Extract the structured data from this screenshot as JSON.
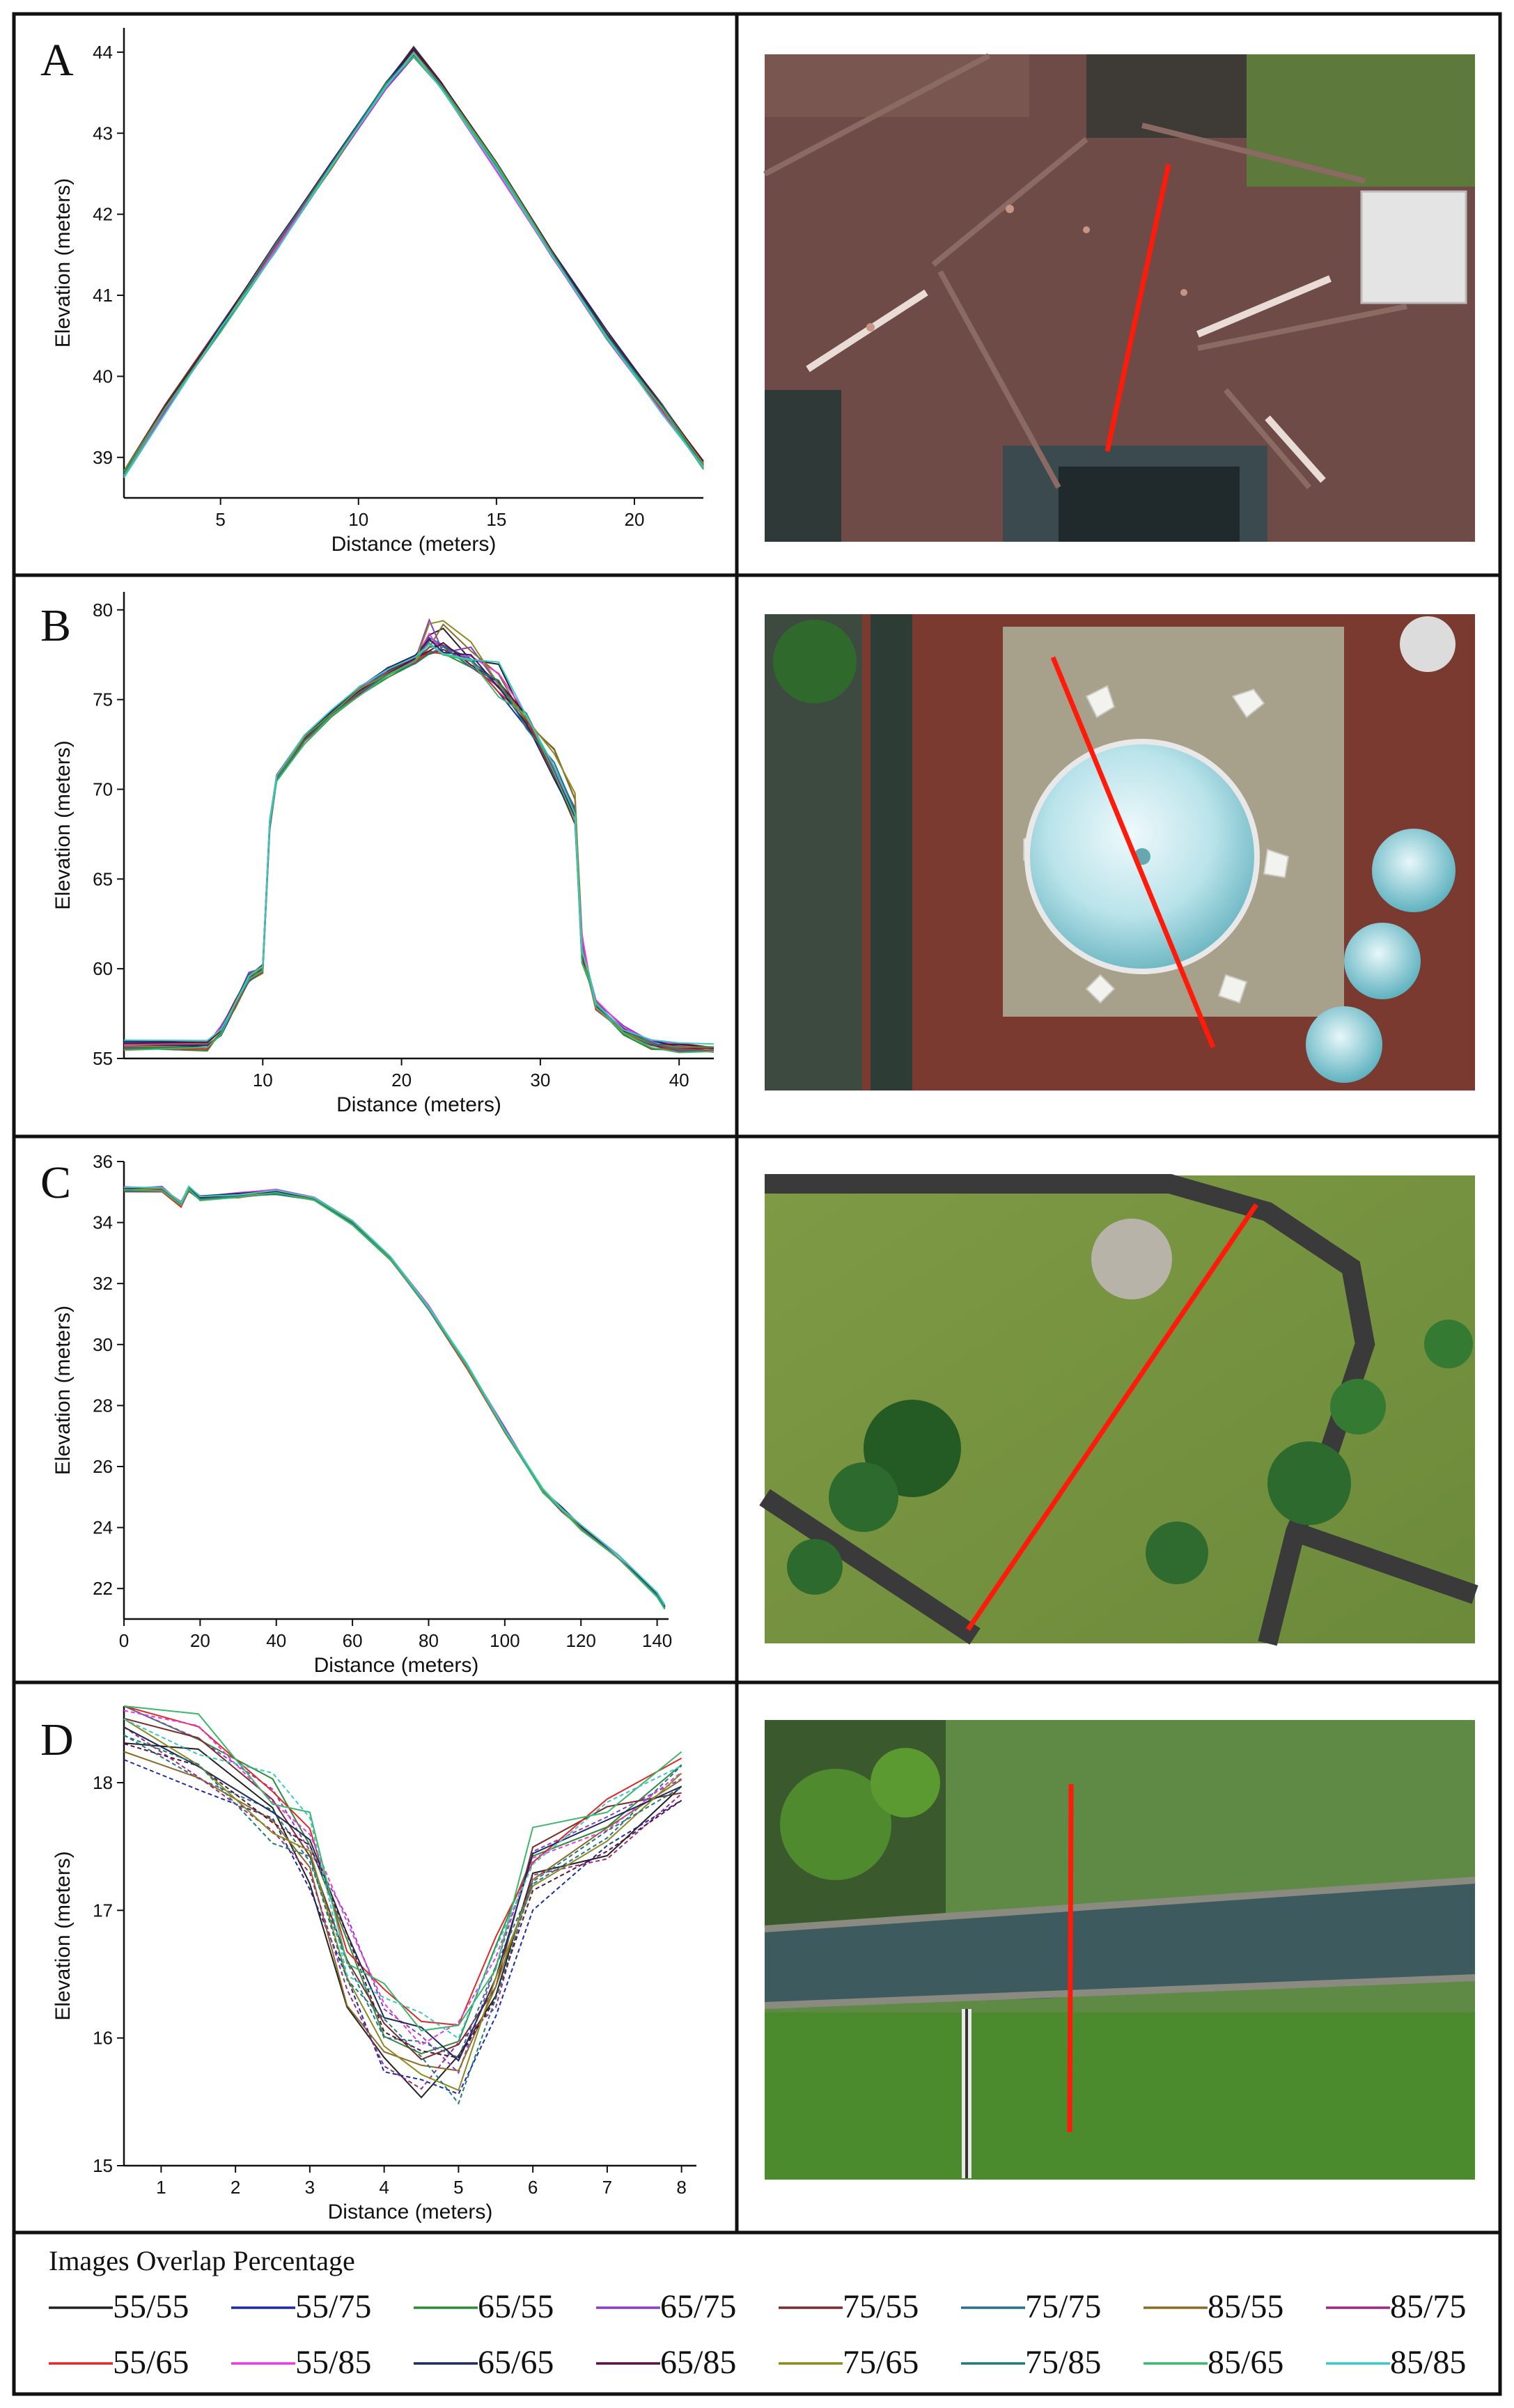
{
  "legend": {
    "title": "Images Overlap Percentage",
    "items": [
      {
        "label": "55/55",
        "color": "#222222"
      },
      {
        "label": "55/75",
        "color": "#1a2aa8"
      },
      {
        "label": "65/55",
        "color": "#2e8b3a"
      },
      {
        "label": "65/75",
        "color": "#8a3ec8"
      },
      {
        "label": "75/55",
        "color": "#7a2c2c"
      },
      {
        "label": "75/75",
        "color": "#2a6f8f"
      },
      {
        "label": "85/55",
        "color": "#8a6a2a"
      },
      {
        "label": "85/75",
        "color": "#a0287a"
      },
      {
        "label": "55/65",
        "color": "#e02828"
      },
      {
        "label": "55/85",
        "color": "#e83ae0"
      },
      {
        "label": "65/65",
        "color": "#1e2a5a"
      },
      {
        "label": "65/85",
        "color": "#5a1040"
      },
      {
        "label": "75/65",
        "color": "#8a8a20"
      },
      {
        "label": "75/85",
        "color": "#1f7a7a"
      },
      {
        "label": "85/65",
        "color": "#3ab86a"
      },
      {
        "label": "85/85",
        "color": "#38c8c8"
      }
    ]
  },
  "chart_data": [
    {
      "panel": "A",
      "type": "line",
      "xlabel": "Distance (meters)",
      "ylabel": "Elevation (meters)",
      "xlim": [
        1.5,
        22.5
      ],
      "ylim": [
        38.5,
        44.3
      ],
      "xticks": [
        5,
        10,
        15,
        20
      ],
      "yticks": [
        39,
        40,
        41,
        42,
        43,
        44
      ],
      "x": [
        1.5,
        3,
        5,
        7,
        9,
        11,
        12,
        13,
        15,
        17,
        19,
        21,
        22.5
      ],
      "base": [
        38.8,
        39.6,
        40.6,
        41.6,
        42.6,
        43.6,
        44.0,
        43.6,
        42.6,
        41.5,
        40.5,
        39.6,
        38.9
      ],
      "aerial": "roof",
      "profile_line": "red"
    },
    {
      "panel": "B",
      "type": "line",
      "xlabel": "Distance (meters)",
      "ylabel": "Elevation (meters)",
      "xlim": [
        0,
        42.5
      ],
      "ylim": [
        55,
        81
      ],
      "xticks": [
        10,
        20,
        30,
        40
      ],
      "yticks": [
        55,
        60,
        65,
        70,
        75,
        80
      ],
      "x": [
        0,
        6,
        7,
        8,
        9,
        10,
        10.5,
        11,
        13,
        15,
        17,
        19,
        21,
        22,
        23,
        25,
        27,
        29,
        31,
        32.5,
        33,
        33.5,
        34,
        36,
        38,
        40,
        42.5
      ],
      "base": [
        55.7,
        55.7,
        56.5,
        58,
        59.5,
        60,
        68,
        70.5,
        72.8,
        74.3,
        75.5,
        76.5,
        77.2,
        77.5,
        77.3,
        76.6,
        75.2,
        73.2,
        70.5,
        68,
        60,
        59.5,
        58,
        56.5,
        55.8,
        55.6,
        55.5
      ],
      "aerial": "dome",
      "profile_line": "red"
    },
    {
      "panel": "C",
      "type": "line",
      "xlabel": "Distance (meters)",
      "ylabel": "Elevation (meters)",
      "xlim": [
        0,
        143
      ],
      "ylim": [
        21,
        36
      ],
      "xticks": [
        0,
        20,
        40,
        60,
        80,
        100,
        120,
        140
      ],
      "yticks": [
        22,
        24,
        26,
        28,
        30,
        32,
        34,
        36
      ],
      "x": [
        0,
        10,
        15,
        17,
        20,
        30,
        40,
        50,
        60,
        70,
        80,
        90,
        100,
        110,
        115,
        120,
        130,
        140,
        142
      ],
      "base": [
        35.1,
        35.1,
        34.6,
        35.1,
        34.8,
        34.9,
        35.0,
        34.8,
        34.0,
        32.8,
        31.2,
        29.3,
        27.2,
        25.2,
        24.6,
        24.0,
        23.0,
        21.8,
        21.4
      ],
      "aerial": "field",
      "profile_line": "red"
    },
    {
      "panel": "D",
      "type": "line",
      "xlabel": "Distance (meters)",
      "ylabel": "Elevation (meters)",
      "xlim": [
        0.5,
        8.2
      ],
      "ylim": [
        15,
        18.6
      ],
      "xticks": [
        1,
        2,
        3,
        4,
        5,
        6,
        7,
        8
      ],
      "yticks": [
        15,
        16,
        17,
        18
      ],
      "x": [
        0.5,
        1.5,
        2.5,
        3,
        3.5,
        4,
        4.5,
        5,
        5.5,
        6,
        7,
        8
      ],
      "base": [
        18.45,
        18.2,
        17.8,
        17.45,
        16.8,
        16.25,
        16.1,
        16.1,
        16.45,
        17.3,
        17.6,
        18.0
      ],
      "aerial": "canal",
      "profile_line": "red"
    }
  ]
}
